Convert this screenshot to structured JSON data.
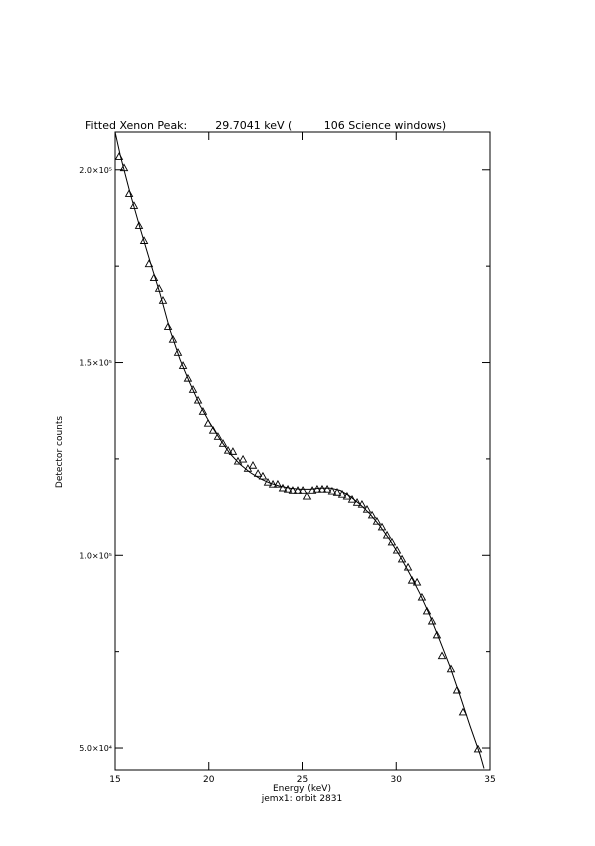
{
  "chart_data": {
    "type": "scatter",
    "title": "Fitted Xenon Peak:        29.7041 keV (         106 Science windows)",
    "x_label": "Energy (keV)",
    "subtitle": "jemx1: orbit 2831",
    "y_label": "Detector counts",
    "xlim": [
      15,
      35
    ],
    "xticks": [
      15,
      20,
      25,
      30,
      35
    ],
    "ylim": [
      44300,
      209800
    ],
    "yticks": [
      {
        "value": 50000,
        "label": "5.0×10⁴"
      },
      {
        "value": 100000,
        "label": "1.0×10⁵"
      },
      {
        "value": 150000,
        "label": "1.5×10⁵"
      },
      {
        "value": 200000,
        "label": "2.0×10⁵"
      }
    ],
    "yminorticks": [
      75000,
      125000,
      175000
    ],
    "color": "#000000",
    "series": [
      {
        "marker": "triangle",
        "x": [
          15.21,
          15.48,
          15.75,
          16.01,
          16.28,
          16.55,
          16.81,
          17.08,
          17.35,
          17.56,
          17.83,
          18.09,
          18.36,
          18.63,
          18.89,
          19.16,
          19.43,
          19.69,
          19.96,
          20.23,
          20.49,
          20.76,
          21.03,
          21.29,
          21.56,
          21.83,
          22.09,
          22.36,
          22.63,
          22.89,
          23.16,
          23.43,
          23.69,
          23.96,
          24.23,
          24.49,
          24.76,
          25.03,
          25.24,
          25.51,
          25.77,
          26.04,
          26.31,
          26.57,
          26.84,
          27.11,
          27.37,
          27.64,
          27.91,
          28.17,
          28.44,
          28.71,
          28.97,
          29.24,
          29.51,
          29.77,
          30.04,
          30.31,
          30.63,
          30.84,
          31.11,
          31.37,
          31.64,
          31.91,
          32.17,
          32.44,
          32.92,
          33.24,
          33.56,
          34.36
        ],
        "values": [
          203400,
          200500,
          193800,
          190700,
          185500,
          181600,
          175600,
          172000,
          169200,
          166100,
          159300,
          156000,
          152600,
          149200,
          145900,
          143000,
          140200,
          137300,
          134200,
          132400,
          130800,
          129000,
          127200,
          126900,
          124400,
          124900,
          122500,
          123300,
          121200,
          120500,
          118900,
          118400,
          118400,
          117400,
          117100,
          116800,
          116800,
          116800,
          115300,
          116800,
          117100,
          117100,
          117100,
          116600,
          116300,
          115800,
          115300,
          114500,
          113700,
          113200,
          111900,
          110400,
          108800,
          107300,
          105200,
          103400,
          101300,
          99000,
          96900,
          93500,
          93000,
          89100,
          85500,
          82900,
          79300,
          73900,
          70500,
          65000,
          59300,
          49700
        ]
      },
      {
        "line": true,
        "x": [
          15.0,
          15.27,
          15.8,
          16.33,
          16.87,
          17.4,
          17.93,
          18.47,
          19.0,
          19.53,
          20.07,
          20.6,
          21.13,
          21.67,
          22.2,
          22.73,
          23.27,
          23.8,
          24.33,
          24.87,
          25.4,
          25.93,
          26.47,
          27.0,
          27.53,
          28.07,
          28.6,
          29.13,
          29.67,
          30.2,
          30.73,
          31.27,
          31.8,
          32.33,
          32.87,
          33.4,
          33.93,
          34.47,
          34.68
        ],
        "values": [
          209800,
          203900,
          194000,
          185000,
          176200,
          167900,
          158500,
          150800,
          144600,
          138900,
          134200,
          130100,
          126400,
          123600,
          121500,
          119900,
          118700,
          117900,
          117400,
          117100,
          117100,
          117400,
          117400,
          116800,
          115300,
          113200,
          110700,
          107600,
          103900,
          99800,
          95100,
          90000,
          84300,
          77800,
          71100,
          63600,
          55800,
          48300,
          44700
        ]
      }
    ]
  }
}
